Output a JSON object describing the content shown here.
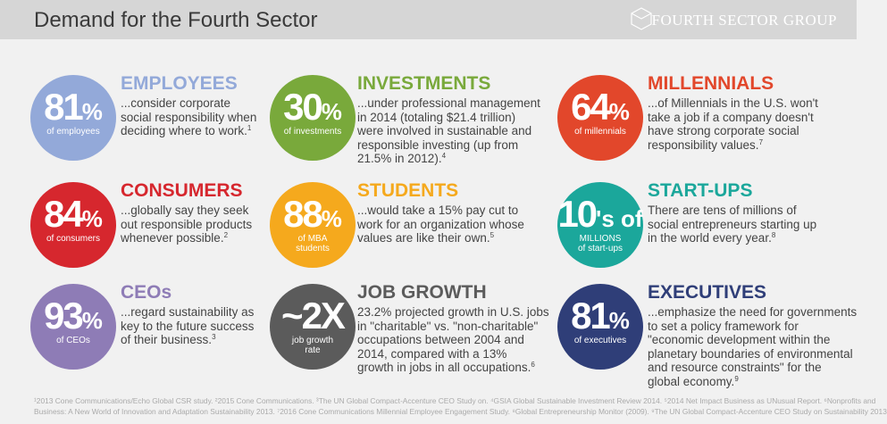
{
  "header": {
    "title": "Demand for the Fourth Sector",
    "logo": "FOURTH SECTOR GROUP"
  },
  "items": [
    {
      "stat": "81",
      "suffix": "%",
      "label": [
        "of employees"
      ],
      "heading": "EMPLOYEES",
      "color": "#93a9d9",
      "lines": [
        "...consider corporate",
        "social responsibility when",
        "deciding where to work."
      ],
      "note": "1"
    },
    {
      "stat": "30",
      "suffix": "%",
      "label": [
        "of investments"
      ],
      "heading": "INVESTMENTS",
      "color": "#79a93b",
      "lines": [
        "...under professional management",
        "in 2014 (totaling $21.4 trillion)",
        "were involved in sustainable and",
        "responsible investing (up from",
        "21.5% in 2012)."
      ],
      "note": "4"
    },
    {
      "stat": "64",
      "suffix": "%",
      "label": [
        "of millennials"
      ],
      "heading": "MILLENNIALS",
      "color": "#e2472b",
      "lines": [
        "...of Millennials in the U.S. won't",
        "take a job if a company doesn't",
        "have strong corporate social",
        "responsibility values."
      ],
      "note": "7"
    },
    {
      "stat": "84",
      "suffix": "%",
      "label": [
        "of consumers"
      ],
      "heading": "CONSUMERS",
      "color": "#d6272e",
      "lines": [
        "...globally say they seek",
        "out responsible products",
        "whenever possible."
      ],
      "note": "2"
    },
    {
      "stat": "88",
      "suffix": "%",
      "label": [
        "of MBA",
        "students"
      ],
      "heading": "STUDENTS",
      "color": "#f5a91d",
      "lines": [
        "...would take a 15% pay cut to",
        "work for an organization whose",
        "values are like their own."
      ],
      "note": "5"
    },
    {
      "stat": "10",
      "suffix": "'s of",
      "label": [
        "MILLIONS",
        "of start-ups"
      ],
      "heading": "START-UPS",
      "color": "#1ba79b",
      "lines": [
        "There are tens of millions of",
        "social entrepreneurs starting up",
        "in the world every year."
      ],
      "note": "8"
    },
    {
      "stat": "93",
      "suffix": "%",
      "label": [
        "of CEOs"
      ],
      "heading": "CEOs",
      "color": "#8e7cb6",
      "lines": [
        "...regard sustainability as",
        "key to the future success",
        "of their business."
      ],
      "note": "3"
    },
    {
      "stat": "~2X",
      "suffix": "",
      "label": [
        "job growth",
        "rate"
      ],
      "heading": "JOB GROWTH",
      "color": "#5b5b5b",
      "lines": [
        "23.2% projected growth in U.S. jobs",
        "in \"charitable\" vs. \"non-charitable\"",
        "occupations between 2004 and",
        "2014, compared with a 13%",
        "growth in jobs in all occupations."
      ],
      "note": "6"
    },
    {
      "stat": "81",
      "suffix": "%",
      "label": [
        "of executives"
      ],
      "heading": "EXECUTIVES",
      "color": "#2f3e78",
      "lines": [
        "...emphasize the need for governments",
        "to set a policy framework for",
        "\"economic development within the",
        "planetary boundaries of environmental",
        "and resource constraints\" for the",
        "global economy."
      ],
      "note": "9"
    }
  ],
  "footnotes": [
    "¹2013 Cone Communications/Echo Global CSR study. ²2015 Cone Communications. ³The UN Global Compact-Accenture CEO Study on. ⁴GSIA Global Sustainable Investment Review 2014. ⁵2014 Net Impact Business as UNusual Report. ⁶Nonprofits and",
    "Business: A New World of Innovation and Adaptation Sustainability 2013. ⁷2016 Cone Communications Millennial Employee Engagement Study. ⁸Global Entrepreneurship Monitor (2009). ⁹The UN Global Compact-Accenture CEO Study on Sustainability 2013"
  ]
}
